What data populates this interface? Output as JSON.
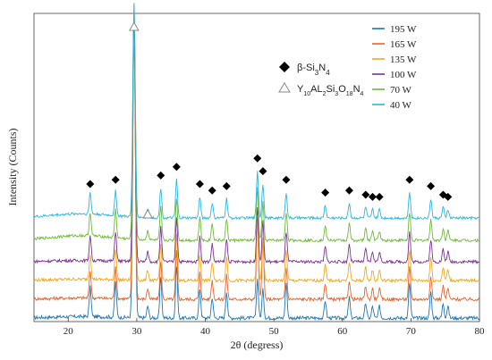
{
  "chart_data": {
    "type": "line",
    "xlabel": "2θ (degress)",
    "ylabel": "Intensity (Counts)",
    "xlim": [
      15,
      80
    ],
    "xticks": [
      20,
      30,
      40,
      50,
      60,
      70,
      80
    ],
    "yticks": [],
    "legend_position": "top-right",
    "grid": false,
    "peak_markers": [
      {
        "label": "β-Si",
        "sub1": "3",
        "mid1": "N",
        "sub2": "4",
        "marker": "filled-diamond",
        "positions": [
          23.2,
          26.9,
          33.5,
          35.8,
          39.2,
          41.0,
          43.1,
          47.6,
          48.4,
          51.8,
          57.5,
          61.0,
          63.4,
          64.4,
          65.4,
          69.8,
          72.9,
          74.7,
          75.4
        ]
      },
      {
        "label": "Y",
        "sub1": "10",
        "mid1": "AL",
        "sub2": "2",
        "mid2": "Si",
        "sub3": "3",
        "mid3": "O",
        "sub4": "18",
        "mid4": "N",
        "sub5": "4",
        "marker": "open-triangle",
        "positions": [
          29.6,
          31.6
        ]
      }
    ],
    "series": [
      {
        "name": "195 W",
        "color": "#1f77b4"
      },
      {
        "name": "165 W",
        "color": "#e8622a"
      },
      {
        "name": "135 W",
        "color": "#f2a91d"
      },
      {
        "name": "100 W",
        "color": "#7b3294"
      },
      {
        "name": "70 W",
        "color": "#6fb93b"
      },
      {
        "name": "40 W",
        "color": "#2bb6df"
      }
    ],
    "peaks": [
      {
        "x": 23.2,
        "h": 0.1
      },
      {
        "x": 26.9,
        "h": 0.12
      },
      {
        "x": 29.6,
        "h": 1.0
      },
      {
        "x": 31.6,
        "h": 0.04
      },
      {
        "x": 33.5,
        "h": 0.14
      },
      {
        "x": 35.8,
        "h": 0.18
      },
      {
        "x": 39.2,
        "h": 0.1
      },
      {
        "x": 41.0,
        "h": 0.07
      },
      {
        "x": 43.1,
        "h": 0.09
      },
      {
        "x": 47.6,
        "h": 0.22
      },
      {
        "x": 48.4,
        "h": 0.16
      },
      {
        "x": 51.8,
        "h": 0.12
      },
      {
        "x": 57.5,
        "h": 0.06
      },
      {
        "x": 61.0,
        "h": 0.07
      },
      {
        "x": 63.4,
        "h": 0.05
      },
      {
        "x": 64.4,
        "h": 0.04
      },
      {
        "x": 65.4,
        "h": 0.04
      },
      {
        "x": 69.8,
        "h": 0.12
      },
      {
        "x": 72.9,
        "h": 0.09
      },
      {
        "x": 74.7,
        "h": 0.05
      },
      {
        "x": 75.4,
        "h": 0.04
      }
    ]
  }
}
